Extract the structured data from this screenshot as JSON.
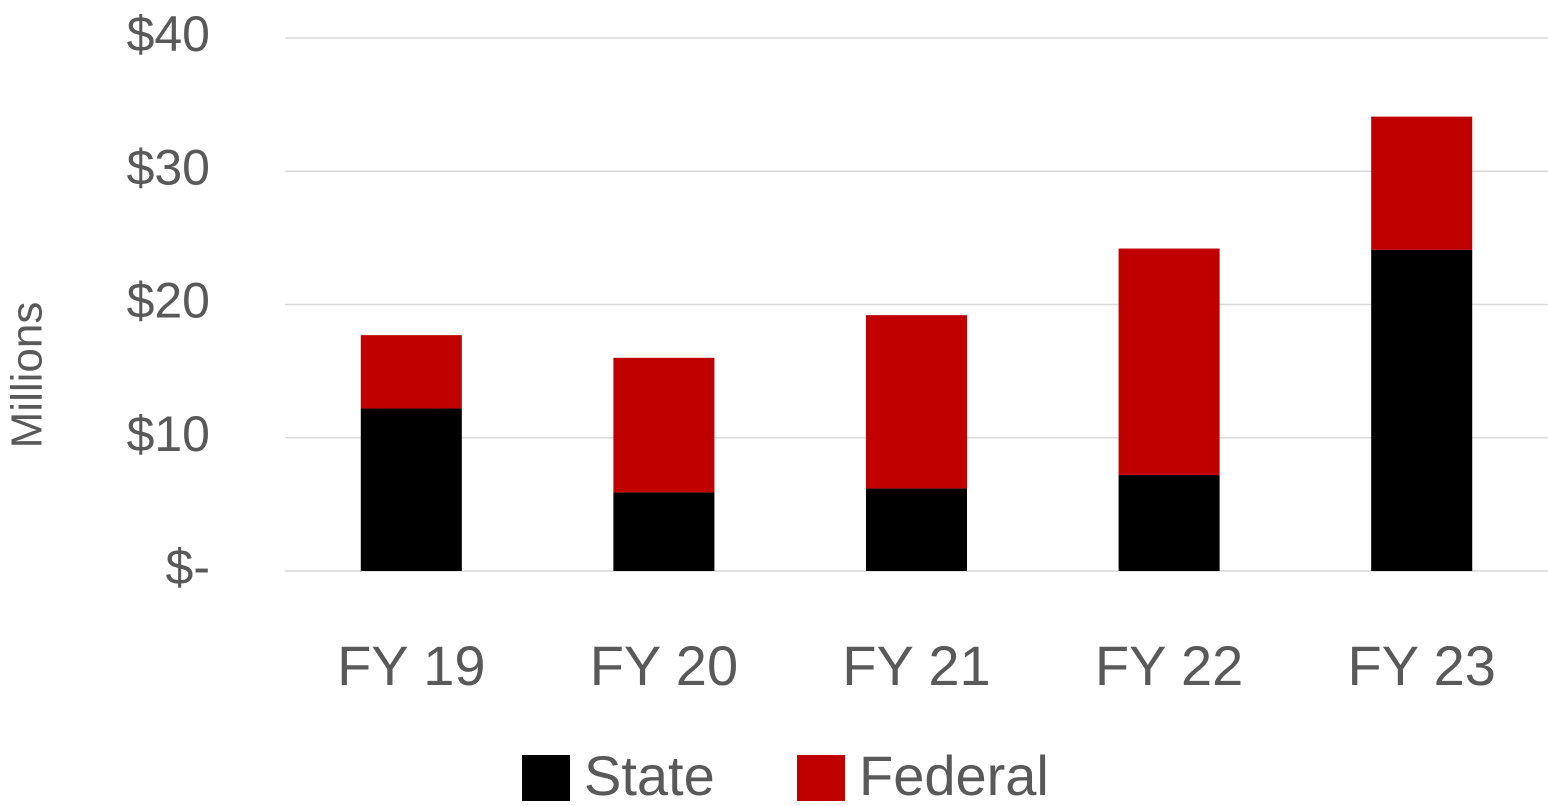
{
  "chart_data": {
    "type": "stacked_bar",
    "y_label": "Millions",
    "categories": [
      "FY 19",
      "FY 20",
      "FY 21",
      "FY 22",
      "FY 23"
    ],
    "series": [
      {
        "name": "State",
        "color": "#000000",
        "values": [
          12.2,
          5.9,
          6.2,
          7.2,
          24.1
        ]
      },
      {
        "name": "Federal",
        "color": "#c00000",
        "values": [
          5.5,
          10.1,
          13.0,
          17.0,
          10.0
        ]
      }
    ],
    "ylim": [
      0,
      40
    ],
    "yticks": [
      {
        "value": 0,
        "label": "$-"
      },
      {
        "value": 10,
        "label": "$10"
      },
      {
        "value": 20,
        "label": "$20"
      },
      {
        "value": 30,
        "label": "$30"
      },
      {
        "value": 40,
        "label": "$40"
      }
    ],
    "grid": true,
    "legend": "bottom"
  }
}
